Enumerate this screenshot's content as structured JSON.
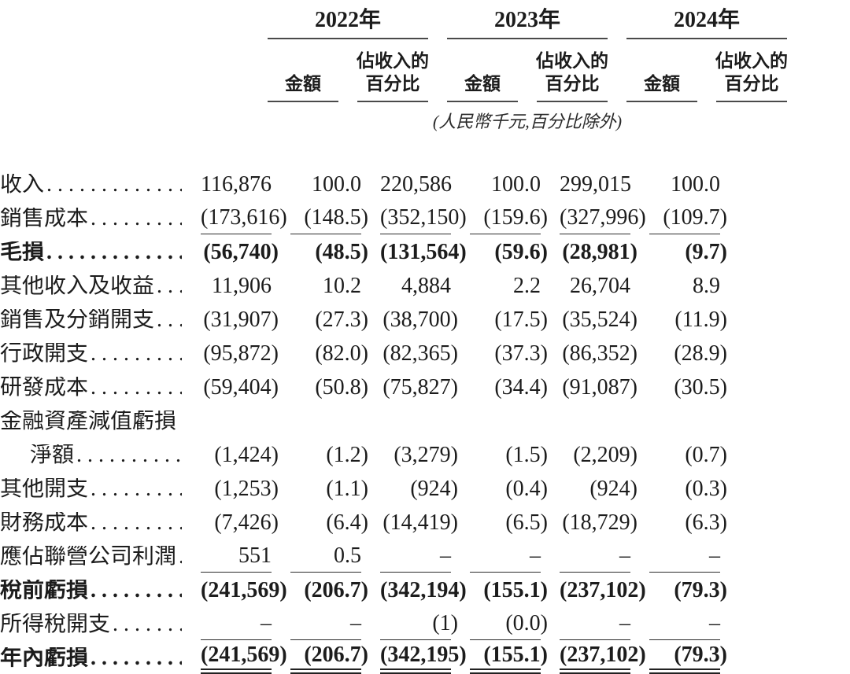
{
  "document": {
    "type": "financial-statement-table",
    "language": "zh-Hant"
  },
  "colors": {
    "text": "#1c1c1c",
    "rule": "#2b2b2b",
    "header_rule": "#4a4a4a",
    "background": "#ffffff"
  },
  "header": {
    "years": [
      "2022年",
      "2023年",
      "2024年"
    ],
    "amount_label": "金額",
    "pct_line1": "佔收入的",
    "pct_line2": "百分比",
    "unit_note": "(人民幣千元,百分比除外)"
  },
  "table": {
    "rows": [
      {
        "label": "收入",
        "dots": true,
        "bold": false,
        "rule": "none",
        "values": [
          "116,876",
          "100.0",
          "220,586",
          "100.0",
          "299,015",
          "100.0"
        ]
      },
      {
        "label": "銷售成本",
        "dots": true,
        "bold": false,
        "rule": "single",
        "values": [
          "(173,616)",
          "(148.5)",
          "(352,150)",
          "(159.6)",
          "(327,996)",
          "(109.7)"
        ]
      },
      {
        "label": "毛損",
        "dots": true,
        "bold": true,
        "rule": "none",
        "values": [
          "(56,740)",
          "(48.5)",
          "(131,564)",
          "(59.6)",
          "(28,981)",
          "(9.7)"
        ]
      },
      {
        "label": "其他收入及收益",
        "dots": true,
        "bold": false,
        "rule": "none",
        "values": [
          "11,906",
          "10.2",
          "4,884",
          "2.2",
          "26,704",
          "8.9"
        ]
      },
      {
        "label": "銷售及分銷開支",
        "dots": true,
        "bold": false,
        "rule": "none",
        "values": [
          "(31,907)",
          "(27.3)",
          "(38,700)",
          "(17.5)",
          "(35,524)",
          "(11.9)"
        ]
      },
      {
        "label": "行政開支",
        "dots": true,
        "bold": false,
        "rule": "none",
        "values": [
          "(95,872)",
          "(82.0)",
          "(82,365)",
          "(37.3)",
          "(86,352)",
          "(28.9)"
        ]
      },
      {
        "label": "研發成本",
        "dots": true,
        "bold": false,
        "rule": "none",
        "values": [
          "(59,404)",
          "(50.8)",
          "(75,827)",
          "(34.4)",
          "(91,087)",
          "(30.5)"
        ]
      },
      {
        "label": "金融資產減值虧損",
        "dots": false,
        "bold": false,
        "rule": "none",
        "values": null
      },
      {
        "label": "淨額",
        "dots": true,
        "bold": false,
        "indent": true,
        "rule": "none",
        "values": [
          "(1,424)",
          "(1.2)",
          "(3,279)",
          "(1.5)",
          "(2,209)",
          "(0.7)"
        ]
      },
      {
        "label": "其他開支",
        "dots": true,
        "bold": false,
        "rule": "none",
        "values": [
          "(1,253)",
          "(1.1)",
          "(924)",
          "(0.4)",
          "(924)",
          "(0.3)"
        ]
      },
      {
        "label": "財務成本",
        "dots": true,
        "bold": false,
        "rule": "none",
        "values": [
          "(7,426)",
          "(6.4)",
          "(14,419)",
          "(6.5)",
          "(18,729)",
          "(6.3)"
        ]
      },
      {
        "label": "應佔聯營公司利潤",
        "dots": true,
        "bold": false,
        "rule": "single",
        "values": [
          "551",
          "0.5",
          "–",
          "–",
          "–",
          "–"
        ]
      },
      {
        "label": "稅前虧損",
        "dots": true,
        "bold": true,
        "rule": "none",
        "values": [
          "(241,569)",
          "(206.7)",
          "(342,194)",
          "(155.1)",
          "(237,102)",
          "(79.3)"
        ]
      },
      {
        "label": "所得稅開支",
        "dots": true,
        "bold": false,
        "rule": "single",
        "values": [
          "–",
          "–",
          "(1)",
          "(0.0)",
          "–",
          "–"
        ]
      },
      {
        "label": "年內虧損",
        "dots": true,
        "bold": true,
        "rule": "double",
        "values": [
          "(241,569)",
          "(206.7)",
          "(342,195)",
          "(155.1)",
          "(237,102)",
          "(79.3)"
        ]
      }
    ]
  }
}
